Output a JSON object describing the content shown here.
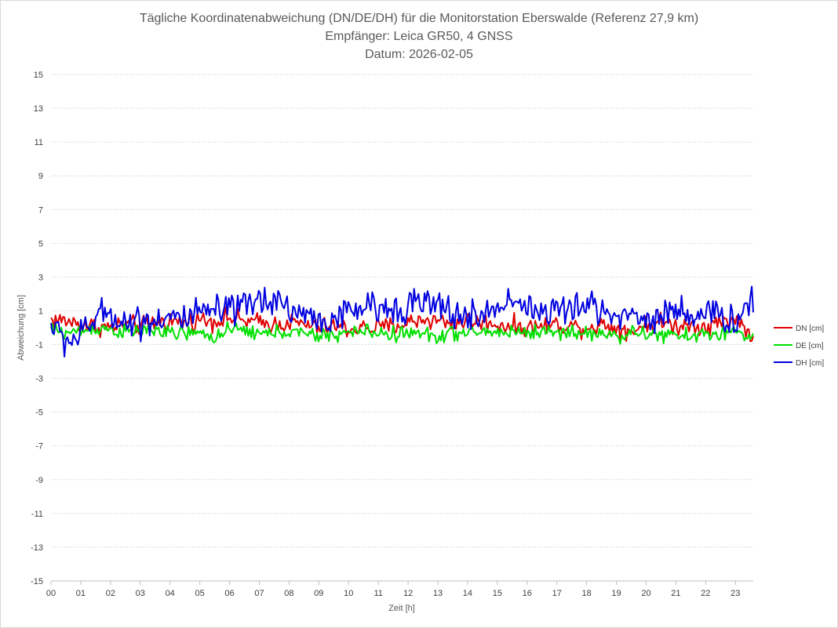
{
  "chart_data": {
    "type": "line",
    "title": [
      "Tägliche Koordinatenabweichung (DN/DE/DH) für die Monitorstation Eberswalde (Referenz 27,9 km)",
      "Empfänger: Leica GR50, 4 GNSS",
      "Datum: 2026-02-05"
    ],
    "xlabel": "Zeit [h]",
    "ylabel": "Abweichung [cm]",
    "xlim": [
      0,
      23.6
    ],
    "ylim": [
      -15,
      15
    ],
    "x_ticks": [
      "00",
      "01",
      "02",
      "03",
      "04",
      "05",
      "06",
      "07",
      "08",
      "09",
      "10",
      "11",
      "12",
      "13",
      "14",
      "15",
      "16",
      "17",
      "18",
      "19",
      "20",
      "21",
      "22",
      "23"
    ],
    "y_ticks": [
      "15",
      "13",
      "11",
      "9",
      "7",
      "5",
      "3",
      "1",
      "-1",
      "-3",
      "-5",
      "-7",
      "-9",
      "-11",
      "-13",
      "-15"
    ],
    "y_tick_values": [
      15,
      13,
      11,
      9,
      7,
      5,
      3,
      1,
      -1,
      -3,
      -5,
      -7,
      -9,
      -11,
      -13,
      -15
    ],
    "grid": true,
    "legend_position": "right",
    "x": [
      0,
      0.5,
      1,
      1.5,
      2,
      2.5,
      3,
      3.5,
      4,
      4.5,
      5,
      5.5,
      6,
      6.5,
      7,
      7.5,
      8,
      8.5,
      9,
      9.5,
      10,
      10.5,
      11,
      11.5,
      12,
      12.5,
      13,
      13.5,
      14,
      14.5,
      15,
      15.5,
      16,
      16.5,
      17,
      17.5,
      18,
      18.5,
      19,
      19.5,
      20,
      20.5,
      21,
      21.5,
      22,
      22.5,
      23,
      23.5
    ],
    "series": [
      {
        "name": "DN [cm]",
        "color": "#e00000",
        "values": [
          0.5,
          0.4,
          0.2,
          0.1,
          0.0,
          0.2,
          0.1,
          0.3,
          0.4,
          0.3,
          0.5,
          0.4,
          0.6,
          0.4,
          0.3,
          0.2,
          0.3,
          0.2,
          0.0,
          0.1,
          -0.1,
          0.0,
          0.0,
          0.1,
          0.3,
          0.5,
          0.4,
          0.3,
          0.4,
          0.3,
          0.2,
          0.1,
          0.0,
          0.1,
          0.2,
          0.1,
          0.0,
          0.2,
          0.0,
          -0.2,
          0.2,
          0.3,
          0.1,
          0.2,
          0.1,
          0.3,
          0.6,
          -0.4
        ]
      },
      {
        "name": "DE [cm]",
        "color": "#00e000",
        "values": [
          -0.1,
          -0.3,
          -0.2,
          0.0,
          -0.1,
          -0.3,
          -0.2,
          -0.1,
          -0.4,
          -0.3,
          -0.4,
          -0.5,
          -0.2,
          -0.1,
          -0.4,
          -0.3,
          -0.2,
          -0.4,
          -0.5,
          -0.4,
          -0.3,
          -0.2,
          -0.3,
          -0.4,
          -0.3,
          -0.4,
          -0.5,
          -0.3,
          -0.4,
          -0.2,
          -0.3,
          -0.2,
          -0.3,
          -0.2,
          -0.3,
          -0.2,
          -0.4,
          -0.3,
          -0.5,
          -0.4,
          -0.3,
          -0.5,
          -0.4,
          -0.6,
          -0.3,
          -0.4,
          -0.2,
          -0.6
        ]
      },
      {
        "name": "DH [cm]",
        "color": "#0000e0",
        "values": [
          0.2,
          -0.8,
          -0.5,
          0.6,
          0.9,
          0.3,
          0.4,
          0.5,
          0.7,
          0.4,
          0.8,
          1.0,
          0.9,
          1.2,
          1.6,
          1.8,
          1.1,
          0.8,
          0.4,
          0.5,
          0.8,
          1.3,
          1.0,
          1.2,
          1.4,
          1.5,
          1.2,
          0.9,
          0.6,
          0.7,
          1.2,
          1.8,
          1.3,
          0.8,
          1.2,
          0.9,
          1.4,
          1.1,
          0.7,
          0.8,
          0.5,
          0.7,
          1.1,
          0.9,
          0.6,
          0.8,
          0.3,
          1.5
        ]
      }
    ]
  }
}
